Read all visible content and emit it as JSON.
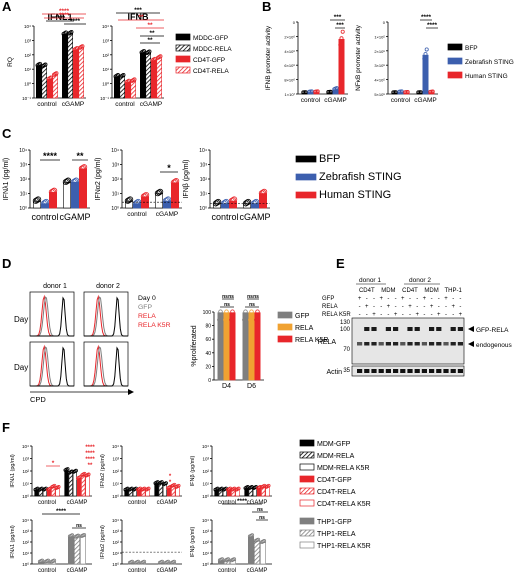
{
  "panel_labels": [
    "A",
    "B",
    "C",
    "D",
    "E",
    "F"
  ],
  "colors": {
    "black": "#000000",
    "red": "#e8262b",
    "blue": "#3c5fae",
    "gray": "#7f7f7f",
    "orange": "#f0a232",
    "lightgray": "#c9c9c9"
  },
  "chart_data": [
    {
      "panel": "A",
      "type": "bar",
      "title": "IFNL1",
      "ylabel": "RQ",
      "yticks": [
        "10⁴",
        "10³",
        "10²",
        "10¹",
        "10⁰",
        "10⁻¹"
      ],
      "categories": [
        "control",
        "cGAMP"
      ],
      "sig": [
        "****",
        "****",
        "****",
        "****"
      ],
      "series": [
        {
          "name": "MDDC-GFP",
          "values": [
            18,
            2700
          ]
        },
        {
          "name": "MDDC-RELA",
          "values": [
            16,
            2900
          ]
        },
        {
          "name": "CD4T-GFP",
          "values": [
            2,
            220
          ]
        },
        {
          "name": "CD4T-RELA",
          "values": [
            4,
            300
          ]
        }
      ]
    },
    {
      "panel": "A",
      "type": "bar",
      "title": "IFNB",
      "ylabel": "",
      "yticks": [
        "10⁴",
        "10³",
        "10²",
        "10¹",
        "10⁰",
        "10⁻¹"
      ],
      "categories": [
        "control",
        "cGAMP"
      ],
      "sig": [
        "***",
        "**",
        "**",
        "**",
        "**"
      ],
      "series": [
        {
          "name": "MDDC-GFP",
          "values": [
            3,
            140
          ]
        },
        {
          "name": "MDDC-RELA",
          "values": [
            3,
            130
          ]
        },
        {
          "name": "CD4T-GFP",
          "values": [
            1.2,
            40
          ]
        },
        {
          "name": "CD4T-RELA",
          "values": [
            1.5,
            60
          ]
        }
      ]
    },
    {
      "panel": "B",
      "type": "bar",
      "title": "",
      "ylabel": "IFNB promoter activity",
      "yticks": [
        "0",
        "2×10⁶",
        "4×10⁶",
        "6×10⁶",
        "8×10⁶",
        "1×10⁷"
      ],
      "ylim": [
        0,
        10000000
      ],
      "categories": [
        "control",
        "cGAMP"
      ],
      "sig": [
        "***",
        "***"
      ],
      "series": [
        {
          "name": "BFP",
          "values": [
            100000,
            150000
          ]
        },
        {
          "name": "Zebrafish STING",
          "values": [
            200000,
            600000
          ]
        },
        {
          "name": "Human STING",
          "values": [
            200000,
            7600000
          ]
        }
      ]
    },
    {
      "panel": "B",
      "type": "bar",
      "title": "",
      "ylabel": "NFκB promoter activity",
      "yticks": [
        "0",
        "1×10⁵",
        "2×10⁵",
        "3×10⁵",
        "4×10⁵",
        "5×10⁵"
      ],
      "ylim": [
        0,
        500000
      ],
      "categories": [
        "control",
        "cGAMP"
      ],
      "sig": [
        "****",
        "****"
      ],
      "series": [
        {
          "name": "BFP",
          "values": [
            5000,
            5000
          ]
        },
        {
          "name": "Zebrafish STING",
          "values": [
            10000,
            270000
          ]
        },
        {
          "name": "Human STING",
          "values": [
            6000,
            9000
          ]
        }
      ]
    },
    {
      "panel": "C",
      "type": "bar",
      "ylabel": "IFNλ1 (pg/ml)",
      "yticks": [
        "10⁴",
        "10³",
        "10²",
        "10¹",
        "10⁰"
      ],
      "categories": [
        "control",
        "cGAMP"
      ],
      "sig": [
        "****",
        "**"
      ],
      "series": [
        {
          "name": "BFP",
          "values": [
            3,
            60
          ]
        },
        {
          "name": "Zebrafish STING",
          "values": [
            2,
            60
          ]
        },
        {
          "name": "Human STING",
          "values": [
            12,
            500
          ]
        }
      ]
    },
    {
      "panel": "C",
      "type": "bar",
      "ylabel": "IFNα2 (pg/ml)",
      "yticks": [
        "10⁴",
        "10³",
        "10²",
        "10¹",
        "10⁰"
      ],
      "categories": [
        "control",
        "cGAMP"
      ],
      "sig": [
        "*"
      ],
      "series": [
        {
          "name": "BFP",
          "values": [
            3,
            10
          ]
        },
        {
          "name": "Zebrafish STING",
          "values": [
            2,
            3
          ]
        },
        {
          "name": "Human STING",
          "values": [
            6,
            55
          ]
        }
      ]
    },
    {
      "panel": "C",
      "type": "bar",
      "ylabel": "IFNβ (pg/ml)",
      "yticks": [
        "10⁴",
        "10³",
        "10²",
        "10¹",
        "10⁰"
      ],
      "categories": [
        "control",
        "cGAMP"
      ],
      "sig": [],
      "series": [
        {
          "name": "BFP",
          "values": [
            2,
            2
          ]
        },
        {
          "name": "Zebrafish STING",
          "values": [
            2,
            2
          ]
        },
        {
          "name": "Human STING",
          "values": [
            3,
            10
          ]
        }
      ]
    },
    {
      "panel": "D",
      "type": "bar",
      "ylabel": "%proliferated",
      "yticks": [
        "100",
        "80",
        "60",
        "40",
        "20",
        "0"
      ],
      "ylim": [
        0,
        100
      ],
      "categories": [
        "D4",
        "D6"
      ],
      "sig": [
        "ns",
        "ns",
        "ns",
        "ns",
        "ns",
        "ns"
      ],
      "series": [
        {
          "name": "GFP",
          "values": [
            99,
            99
          ]
        },
        {
          "name": "RELA",
          "values": [
            99,
            99
          ]
        },
        {
          "name": "RELA K5R",
          "values": [
            99,
            99
          ]
        }
      ]
    },
    {
      "panel": "F",
      "type": "bar",
      "ylabel": "IFNλ1 (pg/ml)",
      "yticks": [
        "10⁴",
        "10³",
        "10²",
        "10¹",
        "10⁰"
      ],
      "categories": [
        "control",
        "cGAMP"
      ],
      "sig": [
        "*",
        "****",
        "****",
        "****",
        "**"
      ],
      "series": [
        {
          "name": "MDM-GFP",
          "values": [
            3,
            110
          ]
        },
        {
          "name": "MDM-RELA",
          "values": [
            3,
            70
          ]
        },
        {
          "name": "MDM-RELA K5R",
          "values": [
            3,
            80
          ]
        },
        {
          "name": "CD4T-GFP",
          "values": [
            3,
            25
          ]
        },
        {
          "name": "CD4T-RELA",
          "values": [
            5,
            45
          ]
        },
        {
          "name": "CD4T-RELA K5R",
          "values": [
            4,
            40
          ]
        }
      ]
    },
    {
      "panel": "F",
      "type": "bar",
      "ylabel": "IFNα2 (pg/ml)",
      "yticks": [
        "10⁴",
        "10³",
        "10²",
        "10¹",
        "10⁰"
      ],
      "categories": [
        "control",
        "cGAMP"
      ],
      "sig": [
        "*",
        "*"
      ],
      "series": [
        {
          "name": "MDM-GFP",
          "values": [
            3,
            10
          ]
        },
        {
          "name": "MDM-RELA",
          "values": [
            3,
            10
          ]
        },
        {
          "name": "MDM-RELA K5R",
          "values": [
            3,
            8
          ]
        },
        {
          "name": "CD4T-GFP",
          "values": [
            3,
            4
          ]
        },
        {
          "name": "CD4T-RELA",
          "values": [
            3,
            6
          ]
        },
        {
          "name": "CD4T-RELA K5R",
          "values": [
            3,
            5
          ]
        }
      ]
    },
    {
      "panel": "F",
      "type": "bar",
      "ylabel": "IFNβ (pg/ml)",
      "yticks": [
        "10⁴",
        "10³",
        "10²",
        "10¹",
        "10⁰"
      ],
      "categories": [
        "control",
        "cGAMP"
      ],
      "sig": [],
      "series": [
        {
          "name": "MDM-GFP",
          "values": [
            3,
            4
          ]
        },
        {
          "name": "MDM-RELA",
          "values": [
            3,
            4
          ]
        },
        {
          "name": "MDM-RELA K5R",
          "values": [
            3,
            4
          ]
        },
        {
          "name": "CD4T-GFP",
          "values": [
            3,
            4
          ]
        },
        {
          "name": "CD4T-RELA",
          "values": [
            3,
            5
          ]
        },
        {
          "name": "CD4T-RELA K5R",
          "values": [
            3,
            5
          ]
        }
      ]
    },
    {
      "panel": "F2",
      "type": "bar",
      "ylabel": "IFNλ1 (pg/ml)",
      "yticks": [
        "10⁴",
        "10³",
        "10²",
        "10¹",
        "10⁰"
      ],
      "categories": [
        "control",
        "cGAMP"
      ],
      "sig": [
        "****",
        "ns"
      ],
      "series": [
        {
          "name": "THP1-GFP",
          "values": [
            1.5,
            300
          ]
        },
        {
          "name": "THP1-RELA",
          "values": [
            1.5,
            280
          ]
        },
        {
          "name": "THP1-RELA K5R",
          "values": [
            1.5,
            320
          ]
        }
      ]
    },
    {
      "panel": "F2",
      "type": "bar",
      "ylabel": "IFNα2 (pg/ml)",
      "yticks": [
        "10⁴",
        "10³",
        "10²",
        "10¹",
        "10⁰"
      ],
      "categories": [
        "control",
        "cGAMP"
      ],
      "sig": [],
      "series": [
        {
          "name": "THP1-GFP",
          "values": [
            1.2,
            1.2
          ]
        },
        {
          "name": "THP1-RELA",
          "values": [
            1.2,
            1.2
          ]
        },
        {
          "name": "THP1-RELA K5R",
          "values": [
            1.2,
            1.2
          ]
        }
      ]
    },
    {
      "panel": "F2",
      "type": "bar",
      "ylabel": "IFNβ (pg/ml)",
      "yticks": [
        "10⁴",
        "10³",
        "10²",
        "10¹",
        "10⁰"
      ],
      "categories": [
        "control",
        "cGAMP"
      ],
      "sig": [
        "****",
        "ns",
        "ns"
      ],
      "series": [
        {
          "name": "THP1-GFP",
          "values": [
            2,
            300
          ]
        },
        {
          "name": "THP1-RELA",
          "values": [
            2,
            120
          ]
        },
        {
          "name": "THP1-RELA K5R",
          "values": [
            2,
            90
          ]
        }
      ]
    }
  ],
  "legend_A": [
    "MDDC-GFP",
    "MDDC-RELA",
    "CD4T-GFP",
    "CD4T-RELA"
  ],
  "legend_B": [
    "BFP",
    "Zebrafish STING",
    "Human STING"
  ],
  "legend_C": [
    "BFP",
    "Zebrafish STING",
    "Human STING"
  ],
  "legend_D": [
    "GFP",
    "RELA",
    "RELA K5R"
  ],
  "legend_F1": [
    "MDM-GFP",
    "MDM-RELA",
    "MDM-RELA K5R",
    "CD4T-GFP",
    "CD4T-RELA",
    "CD4T-RELA K5R"
  ],
  "legend_F2": [
    "THP1-GFP",
    "THP1-RELA",
    "THP1-RELA K5R"
  ],
  "flow": {
    "donors": [
      "donor 1",
      "donor 2"
    ],
    "rows": [
      "Day 4",
      "Day 6"
    ],
    "legend": [
      "Day 0",
      "GFP",
      "RELA",
      "RELA K5R"
    ],
    "xlabel": "CPD"
  },
  "blot": {
    "donors": [
      "donor 1",
      "donor 2"
    ],
    "lanes_top": [
      "CD4T",
      "MDM",
      "CD4T",
      "MDM",
      "THP-1"
    ],
    "rows": [
      "GFP",
      "RELA",
      "RELA K5R"
    ],
    "marks": [
      [
        "+",
        "-",
        "-",
        "+",
        "-",
        "-",
        "+",
        "-",
        "-",
        "+",
        "-",
        "-",
        "+",
        "-",
        "-"
      ],
      [
        "-",
        "+",
        "-",
        "-",
        "+",
        "-",
        "-",
        "+",
        "-",
        "-",
        "+",
        "-",
        "-",
        "+",
        "-"
      ],
      [
        "-",
        "-",
        "+",
        "-",
        "-",
        "+",
        "-",
        "-",
        "+",
        "-",
        "-",
        "+",
        "-",
        "-",
        "+"
      ]
    ],
    "mw": [
      "130",
      "100",
      "70",
      "35"
    ],
    "band_labels": [
      "RELA",
      "Actin"
    ],
    "arrows": [
      "GFP-RELA",
      "endogenous"
    ]
  }
}
